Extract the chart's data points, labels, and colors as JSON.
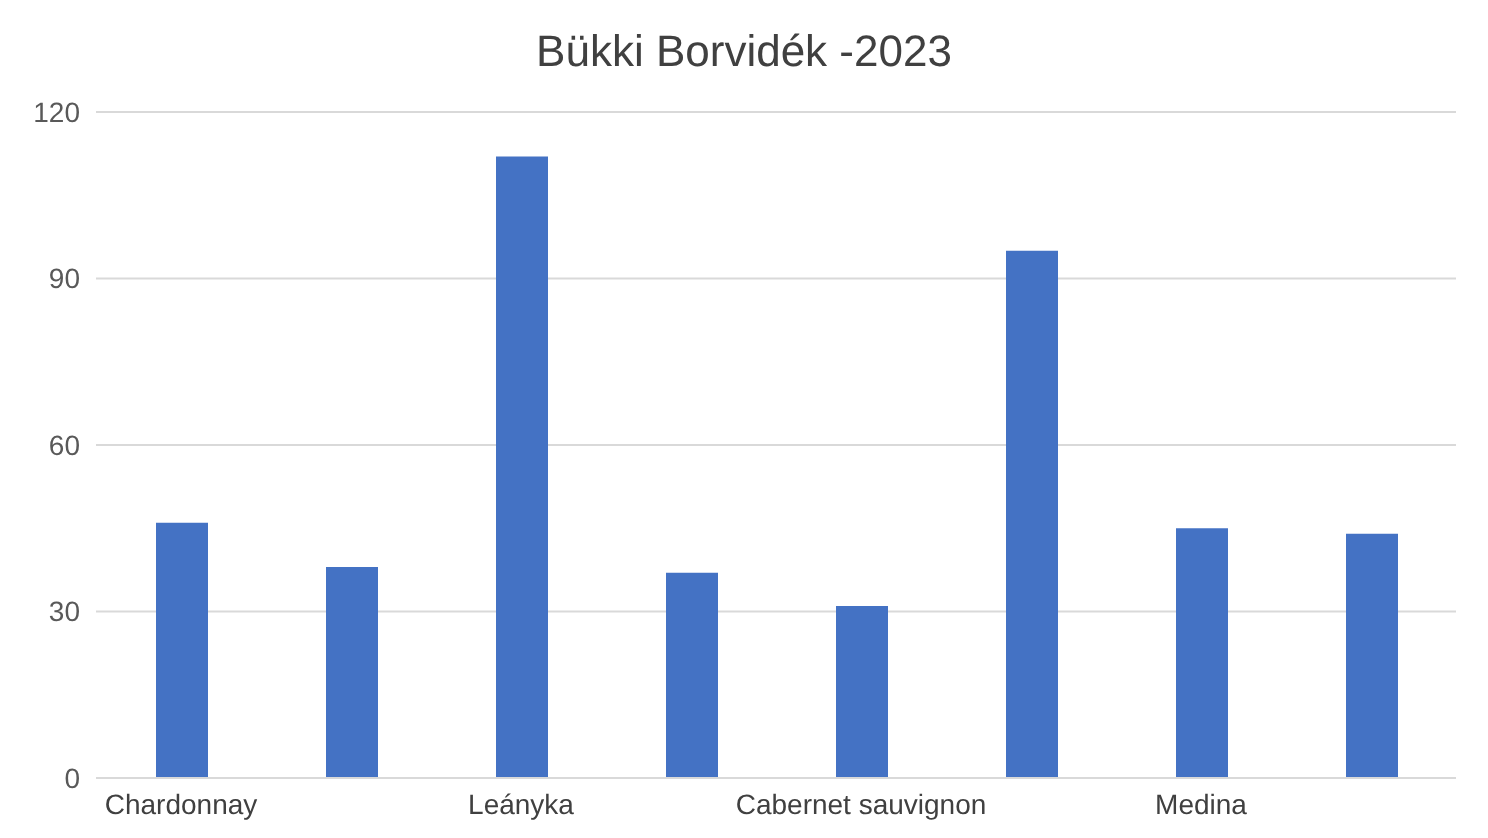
{
  "chart_data": {
    "type": "bar",
    "title": "Bükki Borvidék -2023",
    "categories": [
      "Chardonnay",
      null,
      "Leányka",
      null,
      "Cabernet sauvignon",
      null,
      "Medina",
      null
    ],
    "values": [
      46,
      38,
      112,
      37,
      31,
      95,
      45,
      44
    ],
    "color": "#4472c4",
    "ylim": [
      0,
      120
    ],
    "yticks": [
      0,
      30,
      60,
      90,
      120
    ],
    "grid": "y"
  }
}
